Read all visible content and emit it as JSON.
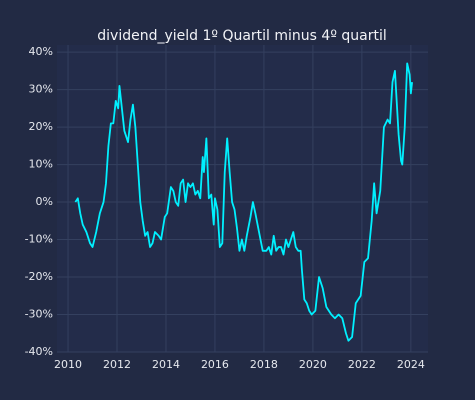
{
  "chart_data": {
    "type": "line",
    "title": "dividend_yield 1º Quartil minus 4º quartil",
    "x": [
      2010.3,
      2010.4,
      2010.5,
      2010.6,
      2010.75,
      2010.9,
      2011.0,
      2011.15,
      2011.3,
      2011.45,
      2011.55,
      2011.65,
      2011.75,
      2011.85,
      2011.95,
      2012.05,
      2012.1,
      2012.2,
      2012.3,
      2012.45,
      2012.55,
      2012.65,
      2012.75,
      2012.85,
      2012.95,
      2013.05,
      2013.15,
      2013.25,
      2013.35,
      2013.45,
      2013.55,
      2013.7,
      2013.8,
      2013.95,
      2014.05,
      2014.2,
      2014.3,
      2014.4,
      2014.5,
      2014.6,
      2014.7,
      2014.8,
      2014.9,
      2015.0,
      2015.1,
      2015.2,
      2015.3,
      2015.4,
      2015.5,
      2015.55,
      2015.65,
      2015.75,
      2015.85,
      2015.95,
      2016.0,
      2016.1,
      2016.2,
      2016.3,
      2016.4,
      2016.5,
      2016.6,
      2016.7,
      2016.8,
      2016.9,
      2017.0,
      2017.1,
      2017.2,
      2017.3,
      2017.45,
      2017.55,
      2017.65,
      2017.8,
      2017.95,
      2018.1,
      2018.2,
      2018.3,
      2018.4,
      2018.5,
      2018.6,
      2018.7,
      2018.8,
      2018.9,
      2019.0,
      2019.1,
      2019.2,
      2019.3,
      2019.4,
      2019.5,
      2019.55,
      2019.65,
      2019.75,
      2019.85,
      2019.95,
      2020.1,
      2020.25,
      2020.4,
      2020.55,
      2020.75,
      2020.9,
      2021.05,
      2021.2,
      2021.35,
      2021.45,
      2021.6,
      2021.75,
      2021.95,
      2022.1,
      2022.25,
      2022.4,
      2022.5,
      2022.6,
      2022.75,
      2022.9,
      2023.05,
      2023.15,
      2023.25,
      2023.35,
      2023.5,
      2023.6,
      2023.65,
      2023.75,
      2023.85,
      2023.95,
      2024.0,
      2024.05
    ],
    "series": [
      {
        "color": "#00f0ff",
        "values": [
          0,
          1,
          -3,
          -6,
          -8,
          -11,
          -12,
          -8,
          -3,
          0,
          5,
          15,
          21,
          21,
          27,
          25,
          31,
          25,
          19,
          16,
          22,
          26,
          20,
          10,
          0,
          -5,
          -9,
          -8,
          -12,
          -11,
          -8,
          -9,
          -10,
          -4,
          -3,
          4,
          3,
          0,
          -1,
          5,
          6,
          0,
          5,
          4,
          5,
          2,
          3,
          1,
          12,
          8,
          17,
          1,
          2,
          -6,
          1,
          -2,
          -12,
          -11,
          8,
          17,
          8,
          0,
          -2,
          -7,
          -13,
          -10,
          -13,
          -9,
          -4,
          0,
          -3,
          -8,
          -13,
          -13,
          -12,
          -14,
          -9,
          -13,
          -12,
          -12,
          -14,
          -10,
          -12,
          -10,
          -8,
          -12,
          -13,
          -13,
          -18,
          -26,
          -27,
          -29,
          -30,
          -29,
          -20,
          -23,
          -28,
          -30,
          -31,
          -30,
          -31,
          -35,
          -37,
          -36,
          -27,
          -25,
          -16,
          -15,
          -5,
          5,
          -3,
          3,
          20,
          22,
          21,
          32,
          35,
          18,
          11,
          10,
          20,
          37,
          34,
          29,
          32
        ]
      }
    ],
    "xlim": [
      2009.55,
      2024.7
    ],
    "xticks": [
      2010,
      2012,
      2014,
      2016,
      2018,
      2020,
      2022,
      2024
    ],
    "ylim": [
      -40,
      41.9
    ],
    "yticks": [
      {
        "value": -40,
        "label": "-40%"
      },
      {
        "value": -30,
        "label": "-30%"
      },
      {
        "value": -20,
        "label": "-20%"
      },
      {
        "value": -10,
        "label": "-10%"
      },
      {
        "value": 0,
        "label": "0%"
      },
      {
        "value": 10,
        "label": "10%"
      },
      {
        "value": 20,
        "label": "20%"
      },
      {
        "value": 30,
        "label": "30%"
      },
      {
        "value": 40,
        "label": "40%"
      }
    ],
    "grid": true
  }
}
